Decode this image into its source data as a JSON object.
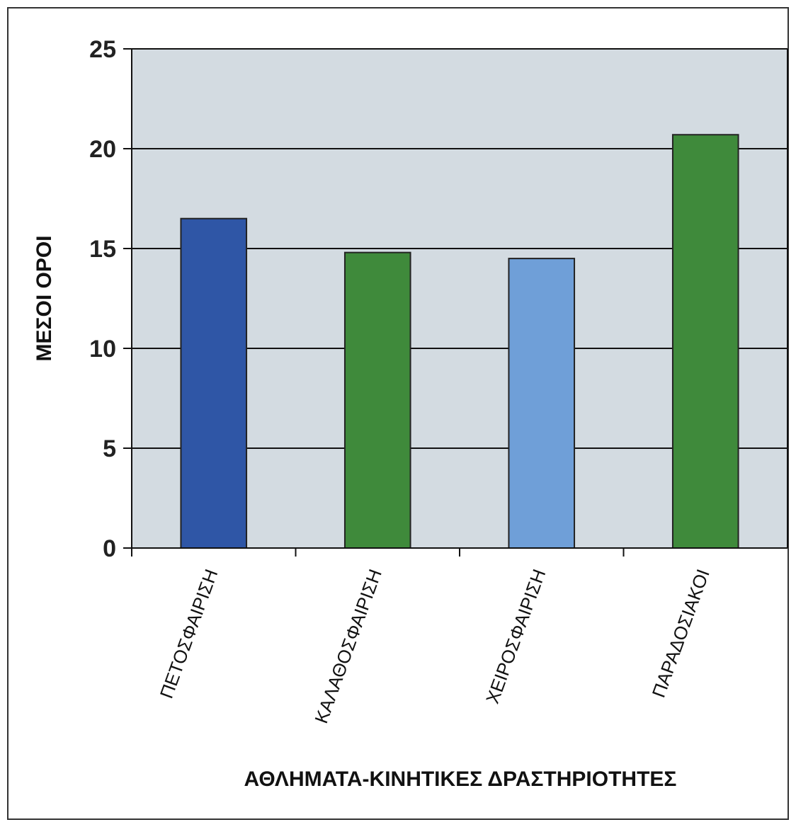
{
  "chart_data": {
    "type": "bar",
    "categories": [
      "ΠΕΤΟΣΦΑΙΡΙΣΗ",
      "ΚΑΛΑΘΟΣΦΑΙΡΙΣΗ",
      "ΧΕΙΡΟΣΦΑΙΡΙΣΗ",
      "ΠΑΡΑΔΟΣΙΑΚΟΙ"
    ],
    "values": [
      16.5,
      14.8,
      14.5,
      20.7
    ],
    "bar_colors": [
      "#2f56a6",
      "#3f8a3b",
      "#6f9fd8",
      "#3f8a3b"
    ],
    "title": "",
    "xlabel": "ΑΘΛΗΜΑΤΑ-ΚΙΝΗΤΙΚΕΣ ΔΡΑΣΤΗΡΙΟΤΗΤΕΣ",
    "ylabel": "ΜΕΣΟΙ ΟΡΟΙ",
    "ylim": [
      0,
      25
    ],
    "yticks": [
      "0",
      "5",
      "10",
      "15",
      "20",
      "25"
    ],
    "grid": true,
    "legend": "none",
    "plot_background": "#d3dbe1"
  }
}
